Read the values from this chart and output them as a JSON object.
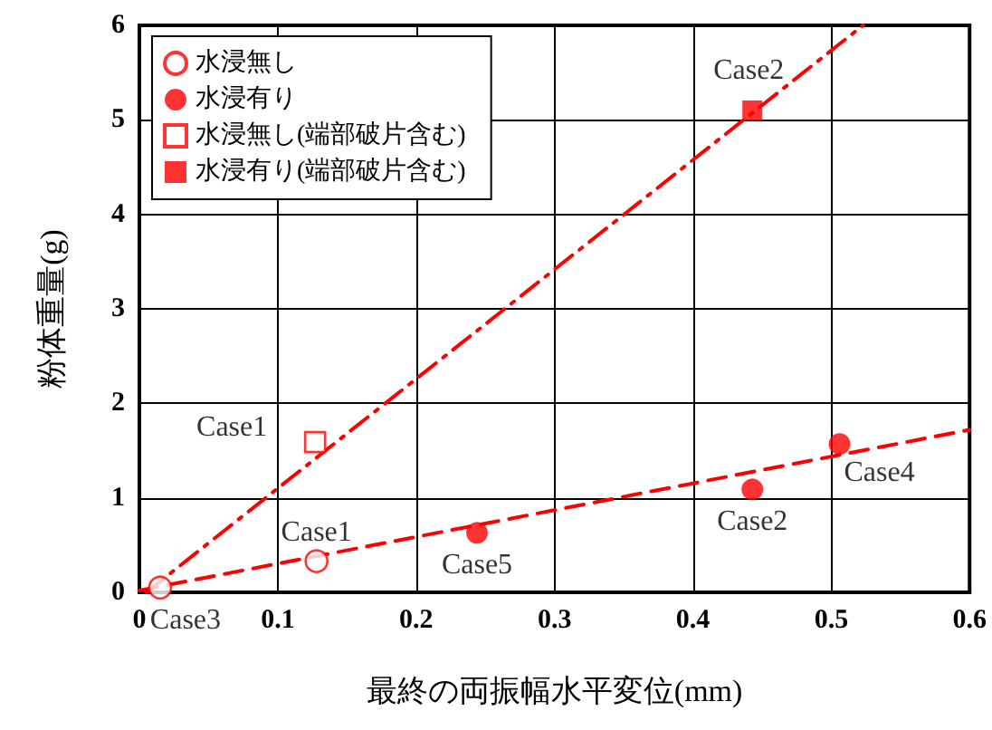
{
  "chart_data": {
    "type": "scatter",
    "xlabel": "最終の両振幅水平変位(mm)",
    "ylabel": "粉体重量(g)",
    "xlim": [
      0,
      0.6
    ],
    "xticks": [
      0,
      0.1,
      0.2,
      0.3,
      0.4,
      0.5,
      0.6
    ],
    "ylim": [
      0,
      6
    ],
    "yticks": [
      0,
      1,
      2,
      3,
      4,
      5,
      6
    ],
    "grid": true,
    "legend": "top left",
    "series": [
      {
        "name": "水浸無し",
        "color": "#ff0000",
        "marker": "circle-open",
        "x": [
          0.015,
          0.128
        ],
        "values": [
          0.05,
          0.33
        ],
        "value_labels": [
          "Case3",
          "Case1"
        ]
      },
      {
        "name": "水浸有り",
        "color": "#ff0000",
        "marker": "circle",
        "x": [
          0.244,
          0.443,
          0.506
        ],
        "values": [
          0.63,
          1.09,
          1.57
        ],
        "value_labels": [
          "Case5",
          "Case2",
          "Case4"
        ]
      },
      {
        "name": "水浸無し(端部破片含む)",
        "color": "#ff0000",
        "marker": "square-open",
        "x": [
          0.127
        ],
        "values": [
          1.59
        ],
        "value_labels": [
          "Case1"
        ]
      },
      {
        "name": "水浸有り(端部破片含む)",
        "color": "#ff0000",
        "marker": "square",
        "x": [
          0.443
        ],
        "values": [
          5.1
        ],
        "value_labels": [
          "Case2"
        ]
      },
      {
        "type": "line",
        "color": "#ff0000",
        "line_style": "dashed",
        "marker": "none",
        "x": [
          0,
          0.6
        ],
        "values": [
          0.02,
          1.72
        ]
      },
      {
        "type": "line",
        "color": "#ff0000",
        "line_style": "dashdot",
        "marker": "none",
        "x": [
          0.005,
          0.523
        ],
        "values": [
          0,
          6
        ]
      }
    ]
  }
}
